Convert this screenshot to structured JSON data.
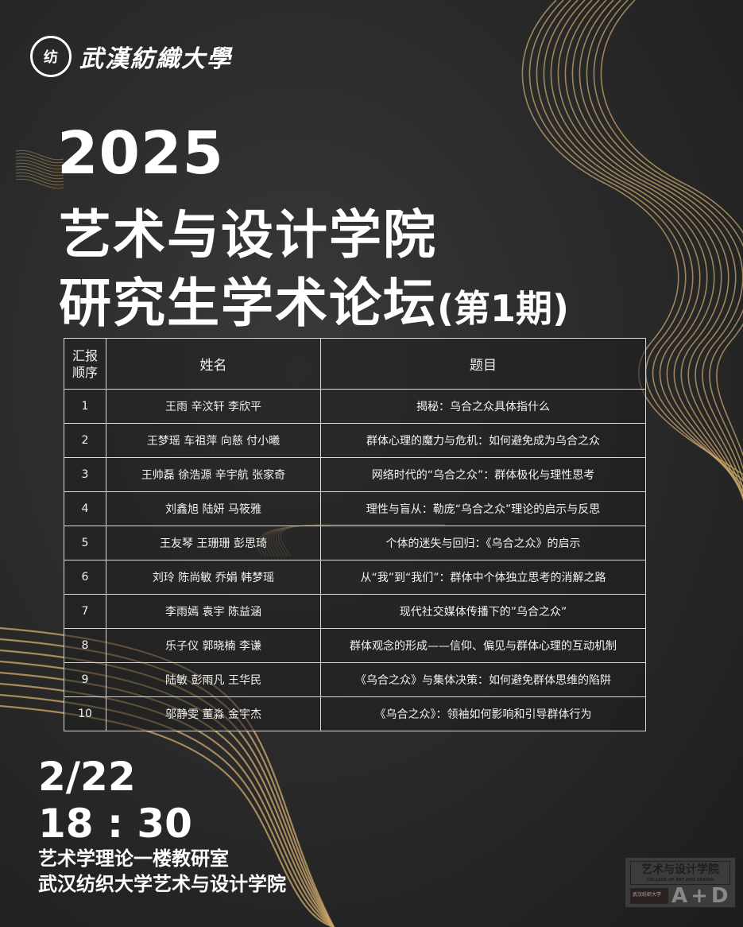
{
  "logo": {
    "seal_text": "纺",
    "university": "武漢紡織大學"
  },
  "title": {
    "year": "2025",
    "college": "艺术与设计学院",
    "forum": "研究生学术论坛",
    "issue": "(第1期)"
  },
  "table": {
    "headers": [
      "汇报顺序",
      "姓名",
      "题目"
    ],
    "rows": [
      {
        "no": "1",
        "names": "王雨 辛汶轩 李欣平",
        "topic": "揭秘：乌合之众具体指什么"
      },
      {
        "no": "2",
        "names": "王梦瑶 车祖萍 向慈 付小曦",
        "topic": "群体心理的魔力与危机：如何避免成为乌合之众"
      },
      {
        "no": "3",
        "names": "王帅磊 徐浩源 辛宇航 张家奇",
        "topic": "网络时代的“乌合之众”：群体极化与理性思考"
      },
      {
        "no": "4",
        "names": "刘鑫旭 陆妍 马筱雅",
        "topic": "理性与盲从：勒庞“乌合之众”理论的启示与反思"
      },
      {
        "no": "5",
        "names": "王友琴 王珊珊 彭思琦",
        "topic": "个体的迷失与回归：《乌合之众》的启示"
      },
      {
        "no": "6",
        "names": "刘玲 陈尚敏 乔娟 韩梦瑶",
        "topic": "从“我”到“我们”：群体中个体独立思考的消解之路"
      },
      {
        "no": "7",
        "names": "李雨嫣 袁宇 陈益涵",
        "topic": "现代社交媒体传播下的”乌合之众”"
      },
      {
        "no": "8",
        "names": "乐子仪 郭晓楠 李谦",
        "topic": "群体观念的形成——信仰、偏见与群体心理的互动机制"
      },
      {
        "no": "9",
        "names": "陆敏 彭雨凡 王华民",
        "topic": "《乌合之众》与集体决策：如何避免群体思维的陷阱"
      },
      {
        "no": "10",
        "names": "邬静雯 董淼 金宇杰",
        "topic": "《乌合之众》：领袖如何影响和引导群体行为"
      }
    ]
  },
  "event": {
    "date": "2/22",
    "time": "18 : 30",
    "room": "艺术学理论一楼教研室",
    "organizer": "武汉纺织大学艺术与设计学院"
  },
  "badge": {
    "title": "艺术与设计学院",
    "subtitle": "COLLEGE OF ART AND DESIGN",
    "uni": "武汉纺织大学",
    "letters": "A+D"
  },
  "colors": {
    "background": "#2a2a2a",
    "gold": "#c8a46a",
    "text": "#ffffff"
  }
}
